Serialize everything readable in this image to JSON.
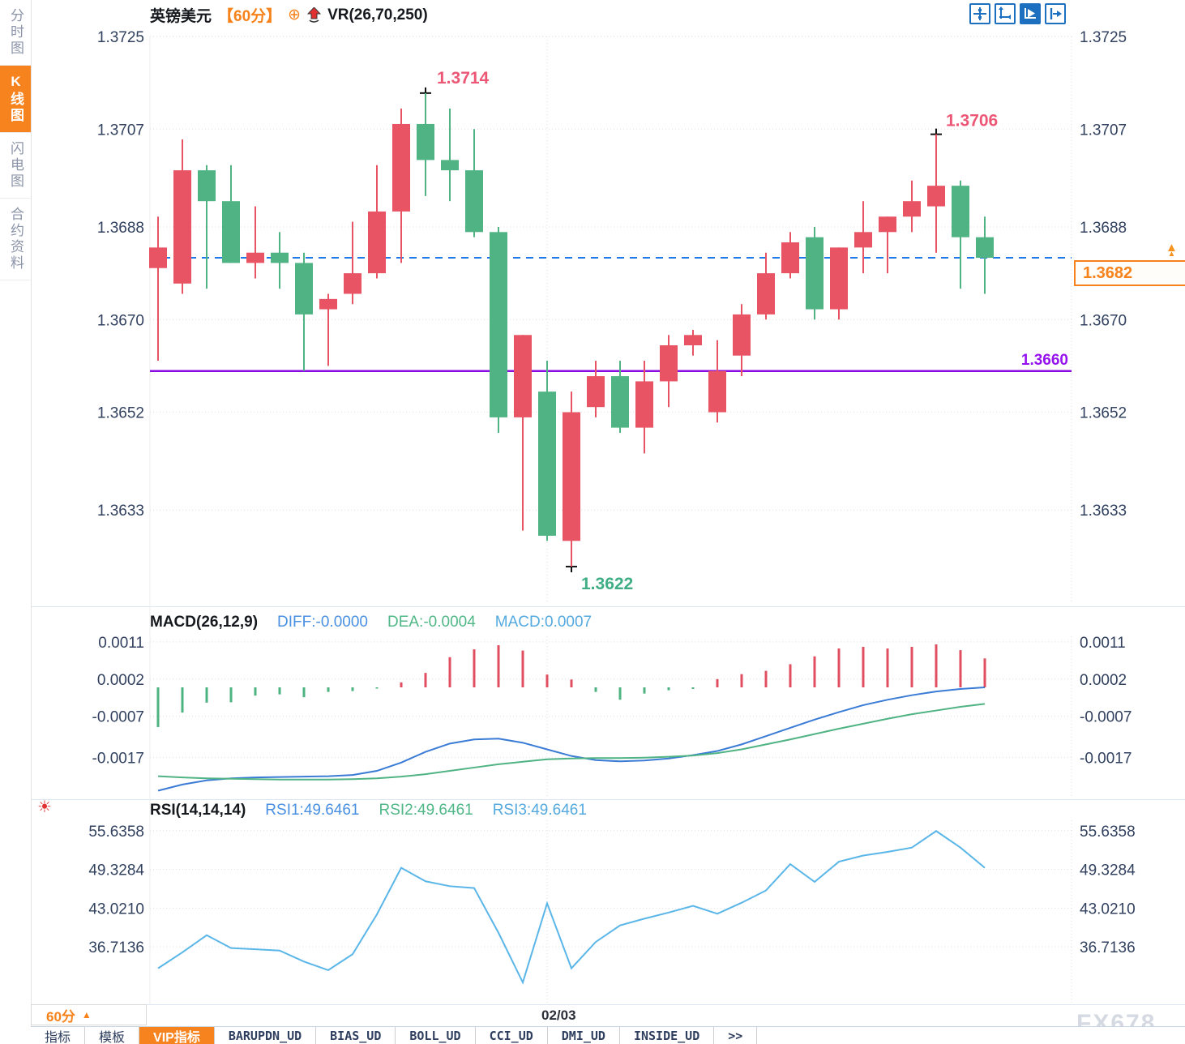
{
  "app": {
    "watermark": "FX678"
  },
  "icons": {
    "sun": "☀",
    "plus_circle": "⊕",
    "up_triangle": "▲",
    "more": "&gt;&gt;"
  },
  "sidebar": {
    "items": [
      {
        "label": "分时图",
        "active": false
      },
      {
        "label": "K线图",
        "active": true
      },
      {
        "label": "闪电图",
        "active": false
      },
      {
        "label": "合约资料",
        "active": false
      }
    ]
  },
  "header": {
    "symbol": "英镑美元",
    "period_tag": "【60分】",
    "plus_icon": "⊕",
    "indicator": "VR(26,70,250)",
    "toolbar_icons": [
      "move-crosshair",
      "axis-zoom",
      "play",
      "exit-right"
    ]
  },
  "footer": {
    "period_label": "60分",
    "period_arrow": "▲",
    "date_label": "02/03",
    "tabs": [
      {
        "label": "指标",
        "active": false,
        "mono": false
      },
      {
        "label": "模板",
        "active": false,
        "mono": false
      },
      {
        "label": "VIP指标",
        "active": true,
        "mono": false
      },
      {
        "label": "BARUPDN_UD",
        "active": false,
        "mono": true
      },
      {
        "label": "BIAS_UD",
        "active": false,
        "mono": true
      },
      {
        "label": "BOLL_UD",
        "active": false,
        "mono": true
      },
      {
        "label": "CCI_UD",
        "active": false,
        "mono": true
      },
      {
        "label": "DMI_UD",
        "active": false,
        "mono": true
      },
      {
        "label": "INSIDE_UD",
        "active": false,
        "mono": true
      },
      {
        "label": ">>",
        "active": false,
        "mono": true
      }
    ]
  },
  "chart_data": {
    "main": {
      "type": "candlestick",
      "symbol": "英镑美元",
      "period": "60分",
      "y_tick_labels": [
        "1.3725",
        "1.3707",
        "1.3688",
        "1.3670",
        "1.3652",
        "1.3633"
      ],
      "y_ticks": [
        1.3725,
        1.3707,
        1.3688,
        1.367,
        1.3652,
        1.3633
      ],
      "ylim": [
        1.3614,
        1.3729
      ],
      "candles_ohlc": [
        [
          1.368,
          1.369,
          1.3662,
          1.3684
        ],
        [
          1.3677,
          1.3705,
          1.3675,
          1.3699
        ],
        [
          1.3699,
          1.37,
          1.3676,
          1.3693
        ],
        [
          1.3693,
          1.37,
          1.3681,
          1.3681
        ],
        [
          1.3681,
          1.3692,
          1.3678,
          1.3683
        ],
        [
          1.3683,
          1.3687,
          1.3676,
          1.3681
        ],
        [
          1.3681,
          1.3683,
          1.366,
          1.3671
        ],
        [
          1.3672,
          1.3675,
          1.3661,
          1.3674
        ],
        [
          1.3675,
          1.3689,
          1.3673,
          1.3679
        ],
        [
          1.3679,
          1.37,
          1.3678,
          1.3691
        ],
        [
          1.3691,
          1.3711,
          1.3681,
          1.3708
        ],
        [
          1.3708,
          1.3714,
          1.3694,
          1.3701
        ],
        [
          1.3701,
          1.3711,
          1.3693,
          1.3699
        ],
        [
          1.3699,
          1.3707,
          1.3686,
          1.3687
        ],
        [
          1.3687,
          1.3688,
          1.3648,
          1.3651
        ],
        [
          1.3651,
          1.3667,
          1.3629,
          1.3667
        ],
        [
          1.3656,
          1.3662,
          1.3627,
          1.3628
        ],
        [
          1.3627,
          1.3656,
          1.3622,
          1.3652
        ],
        [
          1.3653,
          1.3662,
          1.3651,
          1.3659
        ],
        [
          1.3659,
          1.3662,
          1.3648,
          1.3649
        ],
        [
          1.3649,
          1.3662,
          1.3644,
          1.3658
        ],
        [
          1.3658,
          1.3667,
          1.3653,
          1.3665
        ],
        [
          1.3665,
          1.3668,
          1.3663,
          1.3667
        ],
        [
          1.3652,
          1.3666,
          1.365,
          1.366
        ],
        [
          1.3663,
          1.3673,
          1.3659,
          1.3671
        ],
        [
          1.3671,
          1.3683,
          1.367,
          1.3679
        ],
        [
          1.3679,
          1.3687,
          1.3678,
          1.3685
        ],
        [
          1.3686,
          1.3688,
          1.367,
          1.3672
        ],
        [
          1.3672,
          1.3684,
          1.367,
          1.3684
        ],
        [
          1.3684,
          1.3693,
          1.3679,
          1.3687
        ],
        [
          1.3687,
          1.369,
          1.3679,
          1.369
        ],
        [
          1.369,
          1.3697,
          1.3687,
          1.3693
        ],
        [
          1.3692,
          1.3706,
          1.3683,
          1.3696
        ],
        [
          1.3696,
          1.3697,
          1.3676,
          1.3686
        ],
        [
          1.3686,
          1.369,
          1.3675,
          1.3682
        ]
      ],
      "annotations": {
        "high1": {
          "label": "1.3714",
          "value": 1.3714,
          "candle_index": 11
        },
        "high2": {
          "label": "1.3706",
          "value": 1.3706,
          "candle_index": 32
        },
        "low": {
          "label": "1.3622",
          "value": 1.3622,
          "candle_index": 17
        },
        "support_line": {
          "label": "1.3660",
          "value": 1.366
        },
        "last_price": {
          "label": "1.3682",
          "value": 1.3682
        }
      },
      "colors": {
        "up": "#e85463",
        "down": "#4fb383",
        "dashed_line": "#1e78e8",
        "support_line": "#8a0be0",
        "high_label": "#ec5776",
        "low_label": "#3fae85",
        "support_label": "#9512ee",
        "axis_text": "#31415f",
        "grid": "#dedede",
        "tag_orange": "#f7821b"
      }
    },
    "macd": {
      "type": "bar+line",
      "title": "MACD(26,12,9)",
      "diff_label": "DIFF:-0.0000",
      "dea_label": "DEA:-0.0004",
      "macd_label": "MACD:0.0007",
      "y_tick_labels": [
        "0.0011",
        "0.0002",
        "-0.0007",
        "-0.0017"
      ],
      "y_ticks": [
        0.0011,
        0.0002,
        -0.0007,
        -0.0017
      ],
      "hist_x0001": [
        -9.6,
        -6.1,
        -3.7,
        -3.6,
        -2.0,
        -1.7,
        -2.4,
        -1.1,
        -0.9,
        -0.3,
        1.2,
        3.5,
        7.3,
        9.2,
        10.2,
        8.9,
        3.1,
        1.9,
        -1.1,
        -3.0,
        -1.5,
        -0.7,
        -0.4,
        2.0,
        3.2,
        4.0,
        5.6,
        7.5,
        9.4,
        9.8,
        9.4,
        9.8,
        10.4,
        9.0,
        7.0
      ],
      "diff_x0001": [
        -25.0,
        -23.5,
        -22.5,
        -22.0,
        -21.8,
        -21.7,
        -21.6,
        -21.5,
        -21.2,
        -20.2,
        -18.2,
        -15.6,
        -13.6,
        -12.6,
        -12.4,
        -13.4,
        -15.0,
        -16.6,
        -17.6,
        -17.9,
        -17.7,
        -17.2,
        -16.4,
        -15.4,
        -13.8,
        -11.8,
        -9.8,
        -7.8,
        -6.0,
        -4.3,
        -3.0,
        -1.9,
        -1.0,
        -0.4,
        0.0
      ],
      "dea_x0001": [
        -21.5,
        -21.8,
        -22.0,
        -22.1,
        -22.2,
        -22.3,
        -22.3,
        -22.3,
        -22.2,
        -22.0,
        -21.6,
        -21.0,
        -20.2,
        -19.4,
        -18.6,
        -18.0,
        -17.4,
        -17.2,
        -17.1,
        -17.1,
        -17.0,
        -16.8,
        -16.5,
        -15.9,
        -15.0,
        -13.8,
        -12.6,
        -11.3,
        -10.0,
        -8.8,
        -7.6,
        -6.5,
        -5.6,
        -4.7,
        -4.0
      ],
      "colors": {
        "hist_up": "#e04f5f",
        "hist_down": "#4db381",
        "diff_line": "#3a7bd5",
        "dea_line": "#4fb383"
      }
    },
    "rsi": {
      "type": "line",
      "title": "RSI(14,14,14)",
      "rsi1_label": "RSI1:49.6461",
      "rsi2_label": "RSI2:49.6461",
      "rsi3_label": "RSI3:49.6461",
      "y_tick_labels": [
        "55.6358",
        "49.3284",
        "43.0210",
        "36.7136"
      ],
      "y_ticks": [
        55.6358,
        49.3284,
        43.021,
        36.7136
      ],
      "values": [
        33.2,
        35.8,
        38.6,
        36.5,
        36.3,
        36.1,
        34.3,
        32.9,
        35.5,
        42.0,
        49.6,
        47.4,
        46.6,
        46.3,
        39.0,
        30.9,
        43.8,
        33.2,
        37.5,
        40.2,
        41.3,
        42.3,
        43.4,
        42.1,
        43.9,
        45.9,
        50.2,
        47.3,
        50.6,
        51.6,
        52.2,
        52.9,
        55.6,
        52.9,
        49.6
      ],
      "x_axis_label": "02/03",
      "colors": {
        "line": "#5ab6e8"
      }
    }
  }
}
